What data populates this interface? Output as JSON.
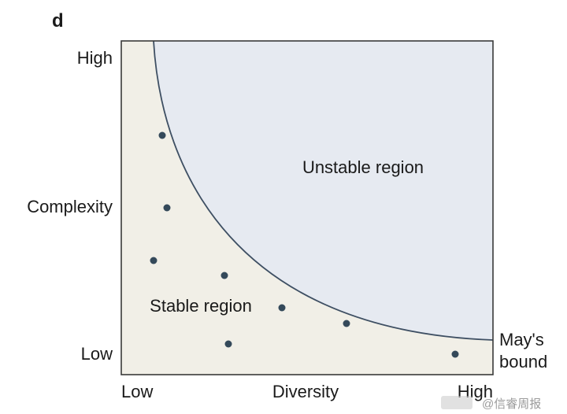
{
  "panel_label": "d",
  "y_axis": {
    "high": "High",
    "title": "Complexity",
    "low": "Low"
  },
  "x_axis": {
    "low": "Low",
    "title": "Diversity",
    "high": "High"
  },
  "regions": {
    "unstable": "Unstable region",
    "stable": "Stable region"
  },
  "boundary": {
    "line1": "May's",
    "line2": "bound"
  },
  "watermark": "@信睿周报",
  "colors": {
    "stable_fill": "#f1efe7",
    "unstable_fill": "#e6eaf1",
    "boundary_line": "#3e4f63",
    "points": "#34495a",
    "frame": "#3a3a3a"
  }
}
